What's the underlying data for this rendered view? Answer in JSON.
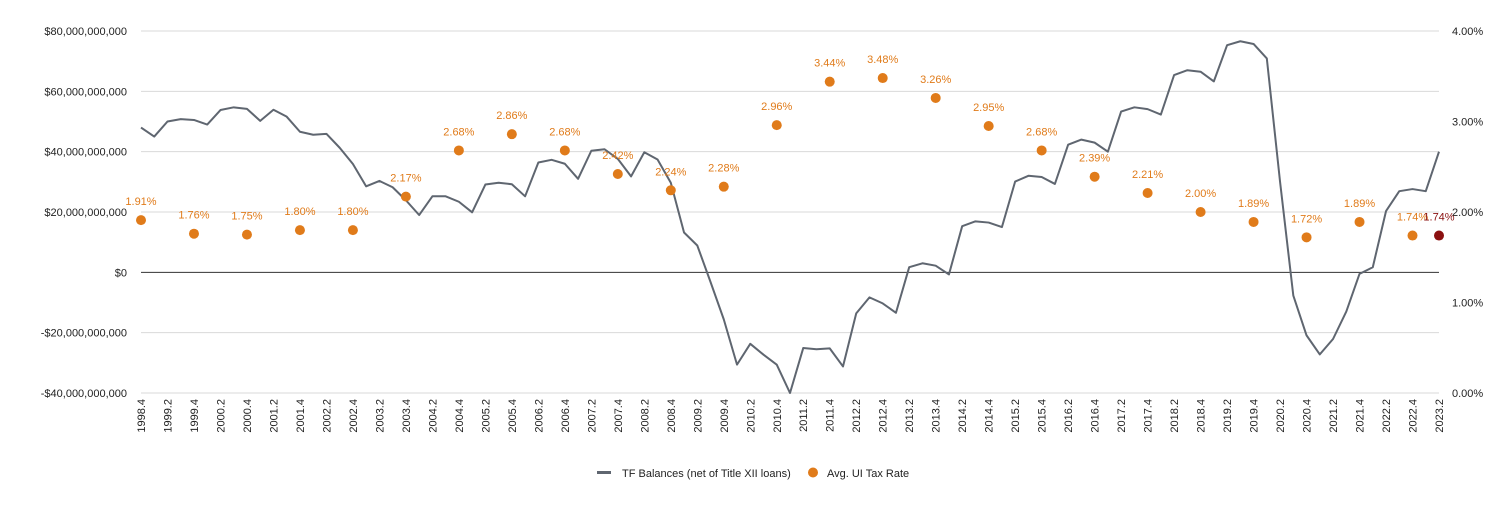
{
  "chart_data": {
    "type": "line",
    "title": "",
    "xlabel": "",
    "ylabel": "",
    "grid": true,
    "legend_position": "bottom",
    "x": [
      "1998.4",
      "1999.1",
      "1999.2",
      "1999.3",
      "1999.4",
      "2000.1",
      "2000.2",
      "2000.3",
      "2000.4",
      "2001.1",
      "2001.2",
      "2001.3",
      "2001.4",
      "2002.1",
      "2002.2",
      "2002.3",
      "2002.4",
      "2003.1",
      "2003.2",
      "2003.3",
      "2003.4",
      "2004.1",
      "2004.2",
      "2004.3",
      "2004.4",
      "2005.1",
      "2005.2",
      "2005.3",
      "2005.4",
      "2006.1",
      "2006.2",
      "2006.3",
      "2006.4",
      "2007.1",
      "2007.2",
      "2007.3",
      "2007.4",
      "2008.1",
      "2008.2",
      "2008.3",
      "2008.4",
      "2009.1",
      "2009.2",
      "2009.3",
      "2009.4",
      "2010.1",
      "2010.2",
      "2010.3",
      "2010.4",
      "2011.1",
      "2011.2",
      "2011.3",
      "2011.4",
      "2012.1",
      "2012.2",
      "2012.3",
      "2012.4",
      "2013.1",
      "2013.2",
      "2013.3",
      "2013.4",
      "2014.1",
      "2014.2",
      "2014.3",
      "2014.4",
      "2015.1",
      "2015.2",
      "2015.3",
      "2015.4",
      "2016.1",
      "2016.2",
      "2016.3",
      "2016.4",
      "2017.1",
      "2017.2",
      "2017.3",
      "2017.4",
      "2018.1",
      "2018.2",
      "2018.3",
      "2018.4",
      "2019.1",
      "2019.2",
      "2019.3",
      "2019.4",
      "2020.1",
      "2020.2",
      "2020.3",
      "2020.4",
      "2021.1",
      "2021.2",
      "2021.3",
      "2021.4",
      "2022.1",
      "2022.2",
      "2022.3",
      "2022.4",
      "2023.1",
      "2023.2"
    ],
    "x_tick_labels": [
      "1998.4",
      "1999.2",
      "1999.4",
      "2000.2",
      "2000.4",
      "2001.2",
      "2001.4",
      "2002.2",
      "2002.4",
      "2003.2",
      "2003.4",
      "2004.2",
      "2004.4",
      "2005.2",
      "2005.4",
      "2006.2",
      "2006.4",
      "2007.2",
      "2007.4",
      "2008.2",
      "2008.4",
      "2009.2",
      "2009.4",
      "2010.2",
      "2010.4",
      "2011.2",
      "2011.4",
      "2012.2",
      "2012.4",
      "2013.2",
      "2013.4",
      "2014.2",
      "2014.4",
      "2015.2",
      "2015.4",
      "2016.2",
      "2016.4",
      "2017.2",
      "2017.4",
      "2018.2",
      "2018.4",
      "2019.2",
      "2019.4",
      "2020.2",
      "2020.4",
      "2021.2",
      "2021.4",
      "2022.2",
      "2022.4",
      "2023.2"
    ],
    "y_left": {
      "ylim": [
        -40000000000,
        80000000000
      ],
      "ticks": [
        80000000000,
        60000000000,
        40000000000,
        20000000000,
        0,
        -20000000000,
        -40000000000
      ],
      "tick_labels": [
        "$80,000,000,000",
        "$60,000,000,000",
        "$40,000,000,000",
        "$20,000,000,000",
        "$0",
        "-$20,000,000,000",
        "-$40,000,000,000"
      ]
    },
    "y_right": {
      "ylim": [
        0,
        4
      ],
      "ticks": [
        4,
        3,
        2,
        1,
        0
      ],
      "tick_labels": [
        "4.00%",
        "3.00%",
        "2.00%",
        "1.00%",
        "0.00%"
      ]
    },
    "series": [
      {
        "name": "TF Balances (net of Title XII loans)",
        "kind": "line",
        "axis": "left",
        "color": "#5f6670",
        "values": [
          48000000000,
          45000000000,
          50000000000,
          50800000000,
          50500000000,
          49000000000,
          53800000000,
          54700000000,
          54200000000,
          50200000000,
          53900000000,
          51600000000,
          46600000000,
          45600000000,
          45900000000,
          41300000000,
          35900000000,
          28500000000,
          30300000000,
          28200000000,
          23900000000,
          19000000000,
          25200000000,
          25200000000,
          23400000000,
          19900000000,
          29100000000,
          29700000000,
          29200000000,
          25200000000,
          36400000000,
          37300000000,
          36000000000,
          31000000000,
          40300000000,
          40800000000,
          37600000000,
          31800000000,
          39800000000,
          37400000000,
          29700000000,
          13200000000,
          8900000000,
          -3200000000,
          -15600000000,
          -30600000000,
          -23700000000,
          -27300000000,
          -30600000000,
          -40000000000,
          -25100000000,
          -25500000000,
          -25200000000,
          -31200000000,
          -13600000000,
          -8300000000,
          -10300000000,
          -13400000000,
          1700000000,
          3000000000,
          2200000000,
          -700000000,
          15300000000,
          16900000000,
          16500000000,
          15000000000,
          30100000000,
          32000000000,
          31600000000,
          29300000000,
          42300000000,
          44000000000,
          43000000000,
          40000000000,
          53300000000,
          54700000000,
          54100000000,
          52300000000,
          65400000000,
          67000000000,
          66500000000,
          63300000000,
          75300000000,
          76600000000,
          75700000000,
          70900000000,
          30000000000,
          -7700000000,
          -20900000000,
          -27200000000,
          -22100000000,
          -13000000000,
          -500000000,
          1700000000,
          20300000000,
          26900000000,
          27600000000,
          26900000000,
          40000000000
        ]
      },
      {
        "name": "Avg. UI Tax Rate",
        "kind": "scatter",
        "axis": "right",
        "color": "#e07b1a",
        "x": [
          "1998.4",
          "1999.4",
          "2000.4",
          "2001.4",
          "2002.4",
          "2003.4",
          "2004.4",
          "2005.4",
          "2006.4",
          "2007.4",
          "2008.4",
          "2009.4",
          "2010.4",
          "2011.4",
          "2012.4",
          "2013.4",
          "2014.4",
          "2015.4",
          "2016.4",
          "2017.4",
          "2018.4",
          "2019.4",
          "2020.4",
          "2021.4",
          "2022.4",
          "2023.2"
        ],
        "values": [
          1.91,
          1.76,
          1.75,
          1.8,
          1.8,
          2.17,
          2.68,
          2.86,
          2.68,
          2.42,
          2.24,
          2.28,
          2.96,
          3.44,
          3.48,
          3.26,
          2.95,
          2.68,
          2.39,
          2.21,
          2.0,
          1.89,
          1.72,
          1.89,
          1.74,
          1.74
        ],
        "labels": [
          "1.91%",
          "1.76%",
          "1.75%",
          "1.80%",
          "1.80%",
          "2.17%",
          "2.68%",
          "2.86%",
          "2.68%",
          "2.42%",
          "2.24%",
          "2.28%",
          "2.96%",
          "3.44%",
          "3.48%",
          "3.26%",
          "2.95%",
          "2.68%",
          "2.39%",
          "2.21%",
          "2.00%",
          "1.89%",
          "1.72%",
          "1.89%",
          "1.74%",
          "1.74%"
        ],
        "highlight": {
          "index": 25,
          "color": "#8b1010"
        }
      }
    ]
  }
}
